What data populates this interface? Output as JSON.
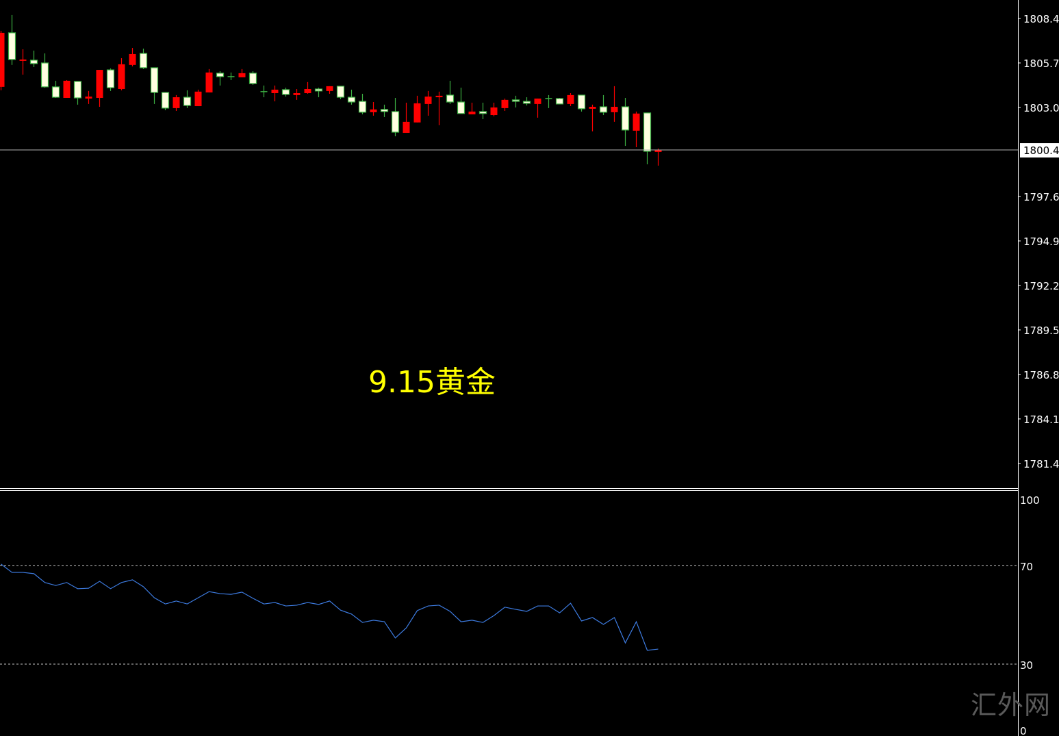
{
  "annotation": "9.15黄金",
  "watermark": "汇外网",
  "colors": {
    "background": "#000000",
    "bull_body": "#ff0000",
    "bear_body": "#ffffe0",
    "bear_outline": "#3cb043",
    "doji": "#3cb043",
    "rsi_line": "#3d7be0",
    "grid_level": "#c8c8c8",
    "text": "#ffffff",
    "annotation": "#ffff00"
  },
  "chart_data": [
    {
      "type": "candlestick",
      "ylim": [
        1779.9,
        1809.52
      ],
      "y_ticks": [
        "1808.4",
        "1805.7",
        "1803.0",
        "1797.6",
        "1794.9",
        "1792.2",
        "1789.5",
        "1786.8",
        "1784.1",
        "1781.4"
      ],
      "current_price": 1800.42,
      "current_price_label": "1800.4",
      "ohlc": [
        [
          1804.25,
          1807.65,
          1804.04,
          1807.53
        ],
        [
          1807.53,
          1808.61,
          1805.58,
          1805.91
        ],
        [
          1805.89,
          1806.53,
          1804.99,
          1805.91
        ],
        [
          1805.87,
          1806.45,
          1805.45,
          1805.66
        ],
        [
          1805.7,
          1806.28,
          1804.2,
          1804.25
        ],
        [
          1804.25,
          1804.62,
          1803.58,
          1803.62
        ],
        [
          1803.58,
          1804.66,
          1803.58,
          1804.62
        ],
        [
          1804.58,
          1804.58,
          1803.17,
          1803.58
        ],
        [
          1803.54,
          1804.0,
          1803.21,
          1803.66
        ],
        [
          1803.58,
          1805.28,
          1803.04,
          1805.28
        ],
        [
          1805.28,
          1805.37,
          1804.0,
          1804.2
        ],
        [
          1804.12,
          1805.99,
          1804.04,
          1805.62
        ],
        [
          1805.58,
          1806.61,
          1805.49,
          1806.24
        ],
        [
          1806.28,
          1806.57,
          1805.33,
          1805.41
        ],
        [
          1805.41,
          1805.41,
          1803.21,
          1803.91
        ],
        [
          1803.91,
          1803.91,
          1802.83,
          1802.96
        ],
        [
          1802.96,
          1803.75,
          1802.79,
          1803.62
        ],
        [
          1803.62,
          1804.04,
          1802.96,
          1803.12
        ],
        [
          1803.08,
          1804.08,
          1803.08,
          1803.96
        ],
        [
          1803.91,
          1805.33,
          1803.91,
          1805.12
        ],
        [
          1805.08,
          1805.2,
          1804.33,
          1804.87
        ],
        [
          1804.87,
          1805.12,
          1804.66,
          1804.87
        ],
        [
          1804.83,
          1805.33,
          1804.83,
          1805.08
        ],
        [
          1805.08,
          1805.2,
          1804.37,
          1804.45
        ],
        [
          1803.96,
          1804.33,
          1803.62,
          1803.96
        ],
        [
          1803.87,
          1804.33,
          1803.37,
          1804.08
        ],
        [
          1804.08,
          1804.2,
          1803.66,
          1803.79
        ],
        [
          1803.75,
          1804.12,
          1803.46,
          1803.87
        ],
        [
          1803.87,
          1804.54,
          1803.83,
          1804.12
        ],
        [
          1804.12,
          1804.2,
          1803.62,
          1804.0
        ],
        [
          1804.0,
          1804.29,
          1803.83,
          1804.29
        ],
        [
          1804.29,
          1804.29,
          1803.5,
          1803.62
        ],
        [
          1803.62,
          1804.08,
          1803.17,
          1803.33
        ],
        [
          1803.37,
          1803.83,
          1802.58,
          1802.71
        ],
        [
          1802.71,
          1803.33,
          1802.5,
          1802.88
        ],
        [
          1802.88,
          1803.17,
          1802.42,
          1802.75
        ],
        [
          1802.75,
          1803.58,
          1801.25,
          1801.5
        ],
        [
          1801.46,
          1803.29,
          1801.46,
          1802.13
        ],
        [
          1802.09,
          1803.71,
          1802.09,
          1803.25
        ],
        [
          1803.21,
          1804.0,
          1802.5,
          1803.66
        ],
        [
          1803.62,
          1803.96,
          1801.92,
          1803.71
        ],
        [
          1803.75,
          1804.62,
          1803.21,
          1803.33
        ],
        [
          1803.33,
          1804.2,
          1802.63,
          1802.63
        ],
        [
          1802.58,
          1803.29,
          1802.58,
          1802.75
        ],
        [
          1802.75,
          1803.29,
          1802.29,
          1802.63
        ],
        [
          1802.54,
          1803.29,
          1802.46,
          1803.0
        ],
        [
          1802.96,
          1803.54,
          1802.79,
          1803.46
        ],
        [
          1803.46,
          1803.71,
          1803.0,
          1803.37
        ],
        [
          1803.37,
          1803.62,
          1803.12,
          1803.25
        ],
        [
          1803.21,
          1803.54,
          1802.38,
          1803.54
        ],
        [
          1803.54,
          1803.75,
          1802.96,
          1803.54
        ],
        [
          1803.54,
          1803.58,
          1803.21,
          1803.21
        ],
        [
          1803.21,
          1803.87,
          1803.08,
          1803.75
        ],
        [
          1803.75,
          1803.75,
          1802.75,
          1802.92
        ],
        [
          1802.92,
          1803.17,
          1801.55,
          1803.04
        ],
        [
          1803.04,
          1803.75,
          1802.54,
          1802.71
        ],
        [
          1802.71,
          1804.29,
          1802.13,
          1803.04
        ],
        [
          1803.04,
          1803.58,
          1800.67,
          1801.63
        ],
        [
          1801.59,
          1802.75,
          1800.59,
          1802.63
        ],
        [
          1802.67,
          1802.67,
          1799.55,
          1800.34
        ],
        [
          1800.3,
          1800.51,
          1799.47,
          1800.42
        ]
      ]
    },
    {
      "type": "line",
      "ylim": [
        0,
        100
      ],
      "y_ticks": [
        "100",
        "70",
        "30",
        "0"
      ],
      "levels": [
        70,
        30
      ],
      "values": [
        70.6,
        67.2,
        67.2,
        66.7,
        63.1,
        61.9,
        63.1,
        60.6,
        60.8,
        63.6,
        60.6,
        63.1,
        64.2,
        61.4,
        56.9,
        54.4,
        55.6,
        54.4,
        56.9,
        59.4,
        58.6,
        58.3,
        59.2,
        56.7,
        54.4,
        55.0,
        53.6,
        53.9,
        55.0,
        54.2,
        55.6,
        51.9,
        50.3,
        46.9,
        47.8,
        47.2,
        40.6,
        44.7,
        51.7,
        53.6,
        53.9,
        51.4,
        47.2,
        47.8,
        46.9,
        49.7,
        53.1,
        52.2,
        51.4,
        53.6,
        53.6,
        50.8,
        54.7,
        47.5,
        48.9,
        46.1,
        48.9,
        38.6,
        47.2,
        35.6,
        36.1
      ]
    }
  ]
}
